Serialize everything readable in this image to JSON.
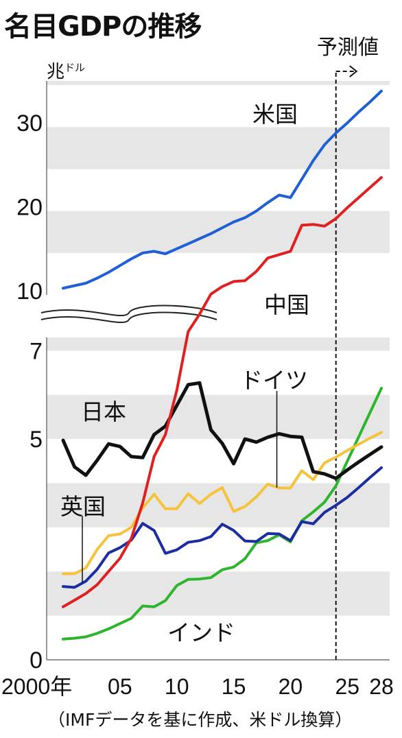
{
  "title": "名目GDPの推移",
  "source_note": "（IMFデータを基に作成、米ドル換算）",
  "forecast_label": "予測値",
  "unit": {
    "main": "兆",
    "sub": "ドル"
  },
  "chart_data": {
    "type": "line",
    "title": "名目GDPの推移",
    "ylabel": "兆ドル",
    "broken_axis": true,
    "forecast_from_year": 2024,
    "x_tick_labels": [
      "2000年",
      "05",
      "10",
      "15",
      "20",
      "25",
      "28"
    ],
    "x_tick_years": [
      2000,
      2005,
      2010,
      2015,
      2020,
      2025,
      2028
    ],
    "y_tick_labels": [
      "0",
      "5",
      "7",
      "10",
      "20",
      "30"
    ],
    "y_ticks": [
      0,
      5,
      7,
      10,
      20,
      30
    ],
    "y_lower_range": [
      0,
      7.3
    ],
    "y_upper_range": [
      9.5,
      35
    ],
    "x": [
      2000,
      2001,
      2002,
      2003,
      2004,
      2005,
      2006,
      2007,
      2008,
      2009,
      2010,
      2011,
      2012,
      2013,
      2014,
      2015,
      2016,
      2017,
      2018,
      2019,
      2020,
      2021,
      2022,
      2023,
      2024,
      2025,
      2026,
      2027,
      2028
    ],
    "series": [
      {
        "name": "米国",
        "color": "#1f5fd6",
        "values": [
          10.3,
          10.6,
          10.9,
          11.5,
          12.2,
          13.0,
          13.8,
          14.5,
          14.7,
          14.4,
          15.0,
          15.6,
          16.2,
          16.8,
          17.5,
          18.2,
          18.7,
          19.5,
          20.5,
          21.4,
          21.1,
          23.3,
          25.5,
          27.4,
          28.8,
          30.0,
          31.3,
          32.5,
          33.8
        ]
      },
      {
        "name": "中国",
        "color": "#e02020",
        "values": [
          1.2,
          1.35,
          1.5,
          1.7,
          2.0,
          2.3,
          2.75,
          3.55,
          4.6,
          5.1,
          6.1,
          7.6,
          8.5,
          9.6,
          10.5,
          11.1,
          11.2,
          12.3,
          13.9,
          14.3,
          14.7,
          17.8,
          17.9,
          17.7,
          18.6,
          19.9,
          21.1,
          22.3,
          23.5
        ]
      },
      {
        "name": "日本",
        "color": "#111111",
        "values": [
          4.97,
          4.37,
          4.18,
          4.52,
          4.89,
          4.83,
          4.6,
          4.58,
          5.1,
          5.29,
          5.76,
          6.23,
          6.27,
          5.21,
          4.9,
          4.44,
          5.0,
          4.93,
          5.04,
          5.12,
          5.06,
          5.04,
          4.26,
          4.21,
          4.11,
          4.3,
          4.48,
          4.65,
          4.82
        ]
      },
      {
        "name": "ドイツ",
        "color": "#f5c33b",
        "values": [
          1.95,
          1.95,
          2.08,
          2.5,
          2.81,
          2.85,
          3.0,
          3.44,
          3.75,
          3.42,
          3.42,
          3.76,
          3.54,
          3.75,
          3.9,
          3.36,
          3.47,
          3.69,
          3.98,
          3.89,
          3.89,
          4.28,
          4.08,
          4.46,
          4.59,
          4.74,
          4.88,
          5.02,
          5.15
        ]
      },
      {
        "name": "英国",
        "color": "#1b2da0",
        "values": [
          1.66,
          1.64,
          1.78,
          2.05,
          2.42,
          2.54,
          2.71,
          3.09,
          2.93,
          2.41,
          2.49,
          2.66,
          2.7,
          2.79,
          3.07,
          2.93,
          2.69,
          2.68,
          2.86,
          2.85,
          2.7,
          3.13,
          3.08,
          3.34,
          3.5,
          3.68,
          3.9,
          4.13,
          4.35
        ]
      },
      {
        "name": "インド",
        "color": "#2db52d",
        "values": [
          0.47,
          0.49,
          0.52,
          0.6,
          0.7,
          0.82,
          0.94,
          1.22,
          1.2,
          1.34,
          1.68,
          1.82,
          1.83,
          1.86,
          2.04,
          2.1,
          2.29,
          2.65,
          2.7,
          2.83,
          2.67,
          3.15,
          3.35,
          3.57,
          3.94,
          4.5,
          5.05,
          5.6,
          6.15
        ]
      }
    ]
  }
}
